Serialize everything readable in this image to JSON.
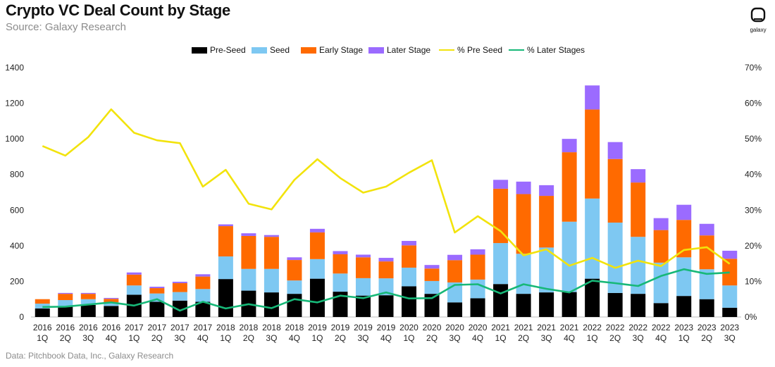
{
  "header": {
    "title": "Crypto VC Deal Count by Stage",
    "subtitle": "Source: Galaxy Research",
    "logo_text": "galaxy"
  },
  "footer": {
    "text": "Data: Pitchbook Data, Inc., Galaxy Research"
  },
  "chart_data": {
    "type": "bar",
    "stacked": true,
    "title": "Crypto VC Deal Count by Stage",
    "xlabel": "",
    "ylabel": "",
    "categories": [
      "2016 1Q",
      "2016 2Q",
      "2016 3Q",
      "2016 4Q",
      "2017 1Q",
      "2017 2Q",
      "2017 3Q",
      "2017 4Q",
      "2018 1Q",
      "2018 2Q",
      "2018 3Q",
      "2018 4Q",
      "2019 1Q",
      "2019 2Q",
      "2019 3Q",
      "2019 4Q",
      "2020 1Q",
      "2020 2Q",
      "2020 3Q",
      "2020 4Q",
      "2021 1Q",
      "2021 2Q",
      "2021 3Q",
      "2021 4Q",
      "2022 1Q",
      "2022 2Q",
      "2022 3Q",
      "2022 4Q",
      "2023 1Q",
      "2023 2Q",
      "2023 3Q"
    ],
    "category_years": [
      "2016",
      "2016",
      "2016",
      "2016",
      "2017",
      "2017",
      "2017",
      "2017",
      "2018",
      "2018",
      "2018",
      "2018",
      "2019",
      "2019",
      "2019",
      "2019",
      "2020",
      "2020",
      "2020",
      "2020",
      "2021",
      "2021",
      "2021",
      "2021",
      "2022",
      "2022",
      "2022",
      "2022",
      "2023",
      "2023",
      "2023"
    ],
    "category_quarters": [
      "1Q",
      "2Q",
      "3Q",
      "4Q",
      "1Q",
      "2Q",
      "3Q",
      "4Q",
      "1Q",
      "2Q",
      "3Q",
      "4Q",
      "1Q",
      "2Q",
      "3Q",
      "4Q",
      "1Q",
      "2Q",
      "3Q",
      "4Q",
      "1Q",
      "2Q",
      "3Q",
      "4Q",
      "1Q",
      "2Q",
      "3Q",
      "4Q",
      "1Q",
      "2Q",
      "3Q"
    ],
    "ylim": [
      0,
      1400
    ],
    "yticks": [
      0,
      200,
      400,
      600,
      800,
      1000,
      1200,
      1400
    ],
    "y2lim": [
      0,
      70
    ],
    "y2ticks": [
      "0%",
      "10%",
      "20%",
      "30%",
      "40%",
      "50%",
      "60%",
      "70%"
    ],
    "legend_position": "top",
    "grid": false,
    "series": [
      {
        "name": "Pre-Seed",
        "color": "#000000",
        "axis": "left",
        "kind": "bar",
        "values": [
          48,
          60,
          68,
          62,
          125,
          85,
          92,
          85,
          213,
          148,
          138,
          130,
          215,
          142,
          120,
          122,
          172,
          130,
          82,
          105,
          185,
          130,
          138,
          140,
          215,
          135,
          130,
          78,
          118,
          100,
          52
        ]
      },
      {
        "name": "Seed",
        "color": "#7ec8f2",
        "axis": "left",
        "kind": "bar",
        "values": [
          27,
          35,
          32,
          20,
          52,
          47,
          48,
          72,
          127,
          122,
          132,
          75,
          110,
          102,
          98,
          95,
          105,
          72,
          112,
          105,
          230,
          225,
          252,
          395,
          450,
          395,
          320,
          227,
          217,
          168,
          125
        ]
      },
      {
        "name": "Early Stage",
        "color": "#ff6a00",
        "axis": "left",
        "kind": "bar",
        "values": [
          25,
          35,
          30,
          20,
          61,
          30,
          50,
          70,
          170,
          185,
          180,
          115,
          150,
          108,
          117,
          95,
          125,
          70,
          125,
          140,
          305,
          335,
          290,
          390,
          500,
          357,
          305,
          183,
          210,
          190,
          150
        ]
      },
      {
        "name": "Later Stage",
        "color": "#9b6bff",
        "axis": "left",
        "kind": "bar",
        "values": [
          0,
          5,
          5,
          5,
          12,
          8,
          8,
          13,
          10,
          15,
          10,
          15,
          20,
          18,
          15,
          20,
          25,
          20,
          30,
          30,
          50,
          70,
          60,
          75,
          135,
          95,
          75,
          67,
          85,
          65,
          45
        ]
      },
      {
        "name": "% Pre Seed",
        "color": "#f2e30c",
        "axis": "right",
        "kind": "line",
        "values": [
          48,
          45.3,
          50.5,
          58.3,
          51.7,
          49.6,
          48.8,
          36.6,
          41.3,
          31.8,
          30.2,
          38.5,
          44.3,
          39,
          34.9,
          36.6,
          40.5,
          44,
          23.7,
          28.3,
          24.1,
          17.3,
          19,
          14.4,
          16.6,
          13.8,
          15.8,
          14.3,
          18.8,
          19.6,
          14.9
        ]
      },
      {
        "name": "% Later Stages",
        "color": "#17b878",
        "axis": "right",
        "kind": "line",
        "values": [
          2.8,
          2.9,
          3.5,
          4.1,
          3.2,
          5,
          1.8,
          4.3,
          2.4,
          3.6,
          2.5,
          5,
          4.1,
          6,
          5.3,
          6.9,
          5.2,
          5.3,
          9,
          9.2,
          6.6,
          9.2,
          7.9,
          6.9,
          10.2,
          9.5,
          8.7,
          11.5,
          13.4,
          12.1,
          12.5
        ]
      }
    ]
  }
}
